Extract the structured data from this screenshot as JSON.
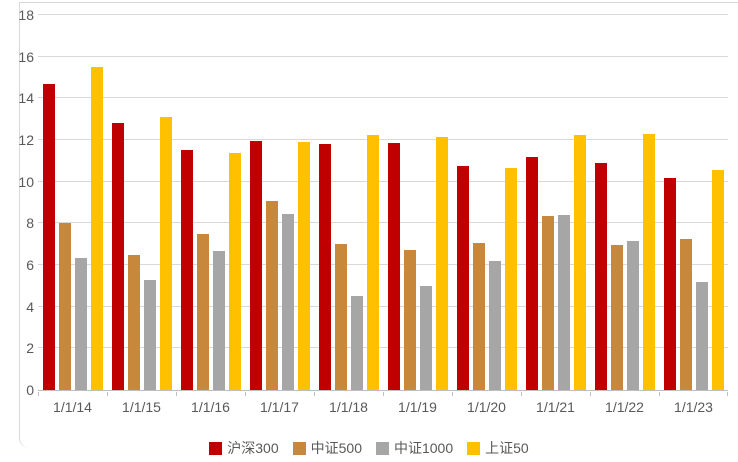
{
  "chart_data": {
    "type": "bar",
    "title": "",
    "categories": [
      "1/1/14",
      "1/1/15",
      "1/1/16",
      "1/1/17",
      "1/1/18",
      "1/1/19",
      "1/1/20",
      "1/1/21",
      "1/1/22",
      "1/1/23"
    ],
    "series": [
      {
        "name": "沪深300",
        "color": "#C00000",
        "values": [
          14.7,
          12.8,
          11.5,
          11.95,
          11.8,
          11.85,
          10.75,
          11.2,
          10.9,
          10.2
        ]
      },
      {
        "name": "中证500",
        "color": "#C8883C",
        "values": [
          8.0,
          6.5,
          7.5,
          9.05,
          7.0,
          6.7,
          7.05,
          8.35,
          6.95,
          7.25
        ]
      },
      {
        "name": "中证1000",
        "color": "#A6A6A6",
        "values": [
          6.35,
          5.3,
          6.65,
          8.45,
          4.5,
          5.0,
          6.2,
          8.4,
          7.15,
          5.2
        ]
      },
      {
        "name": "上证50",
        "color": "#FFC000",
        "values": [
          15.5,
          13.1,
          11.4,
          11.9,
          12.25,
          12.15,
          10.65,
          12.25,
          12.3,
          10.55
        ]
      }
    ],
    "xlabel": "",
    "ylabel": "",
    "ylim": [
      0,
      18
    ],
    "yticks": [
      0,
      2,
      4,
      6,
      8,
      10,
      12,
      14,
      16,
      18
    ],
    "grid": true,
    "legend_position": "bottom"
  },
  "colors": {
    "background": "#FFFFFF",
    "gridline": "#D9D9D9",
    "axis_line": "#BFBFBF",
    "frame_border": "#D9D9D9",
    "label_text": "#595959"
  }
}
